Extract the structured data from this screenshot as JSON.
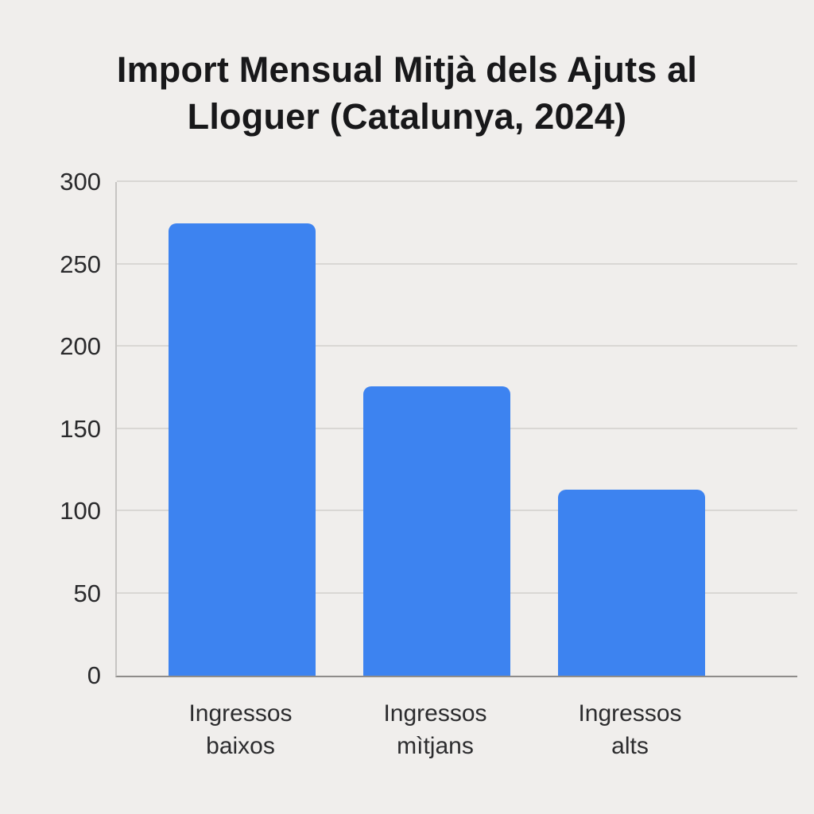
{
  "chart_data": {
    "type": "bar",
    "title": "Import Mensual Mitjà dels Ajuts al Lloguer (Catalunya, 2024)",
    "categories": [
      "Ingressos baixos",
      "Ingressos mìtjans",
      "Ingressos alts"
    ],
    "values": [
      275,
      176,
      113
    ],
    "xlabel": "",
    "ylabel": "",
    "ylim": [
      0,
      300
    ],
    "yticks": [
      0,
      50,
      100,
      150,
      200,
      250,
      300
    ],
    "grid": true,
    "legend": false,
    "bar_color": "#3d83f0",
    "background_color": "#f0eeec",
    "grid_color": "#d9d7d4"
  }
}
